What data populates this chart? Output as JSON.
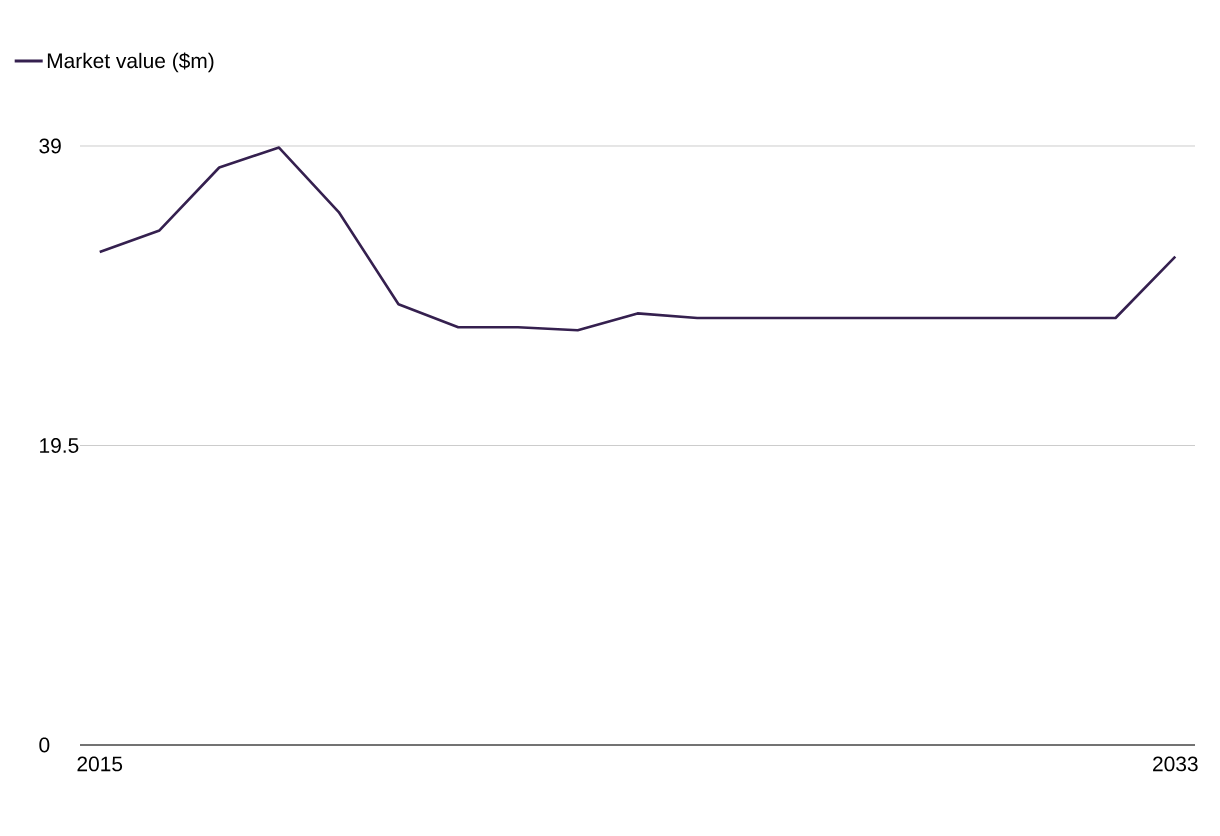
{
  "chart_data": {
    "type": "line",
    "x": [
      2015,
      2016,
      2017,
      2018,
      2019,
      2020,
      2021,
      2022,
      2023,
      2024,
      2025,
      2026,
      2027,
      2028,
      2029,
      2030,
      2031,
      2032,
      2033
    ],
    "series": [
      {
        "name": "Market value ($m)",
        "color": "#35204f",
        "values": [
          32.1,
          33.5,
          37.6,
          38.9,
          34.7,
          28.7,
          27.2,
          27.2,
          27.0,
          28.1,
          27.8,
          27.8,
          27.8,
          27.8,
          27.8,
          27.8,
          27.8,
          27.8,
          31.8
        ]
      }
    ],
    "xlim": [
      2014.67,
      2033.33
    ],
    "xticks": [
      2015,
      2033
    ],
    "ylim": [
      0,
      39
    ],
    "yticks": [
      0,
      19.5,
      39
    ],
    "grid": "y",
    "legend": "top left"
  }
}
